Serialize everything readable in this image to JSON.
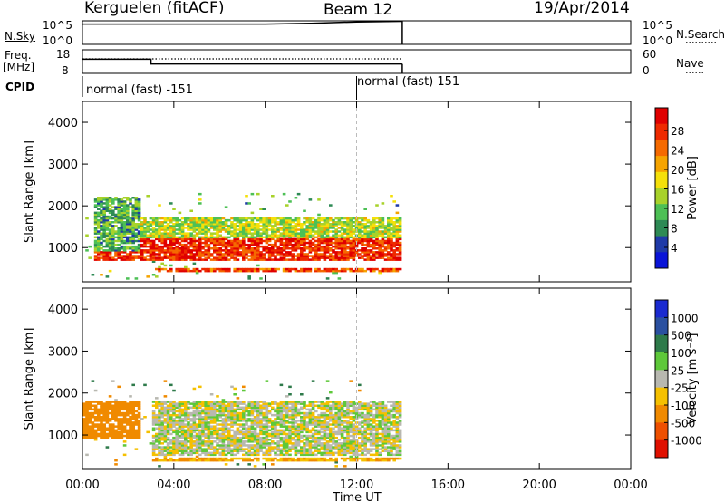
{
  "header": {
    "station": "Kerguelen (fitACF)",
    "beam": "Beam 12",
    "date": "19/Apr/2014"
  },
  "sky_panel": {
    "left_label": "N.Sky",
    "left_ticks": [
      "10^5",
      "10^0"
    ],
    "right_ticks": [
      "10^5",
      "10^0"
    ],
    "right_label": "N.Search"
  },
  "freq_panel": {
    "left_label_line1": "Freq.",
    "left_label_line2": "[MHz]",
    "left_ticks": [
      "18",
      "8"
    ],
    "right_ticks": [
      "60",
      "0"
    ],
    "right_label": "Nave"
  },
  "cpid": {
    "label": "CPID",
    "segments": [
      {
        "text": "normal (fast) -151",
        "start": "00:00",
        "end": "12:00"
      },
      {
        "text": "normal (fast) 151",
        "start": "12:00",
        "end": "14:00"
      }
    ]
  },
  "x_axis": {
    "ticks": [
      "00:00",
      "04:00",
      "08:00",
      "12:00",
      "16:00",
      "20:00",
      "00:00"
    ],
    "label": "Time UT"
  },
  "power_panel": {
    "y_label": "Slant Range [km]",
    "y_ticks": [
      "4000",
      "3000",
      "2000",
      "1000"
    ],
    "colorbar_label": "Power [dB]",
    "colorbar_ticks": [
      "28",
      "24",
      "20",
      "16",
      "12",
      "8",
      "4"
    ],
    "colors": [
      "#0a14d8",
      "#1f3aa8",
      "#2e8a55",
      "#4dc055",
      "#a8d22a",
      "#f5e00a",
      "#f5a400",
      "#f56a00",
      "#ee2a00",
      "#e00000"
    ]
  },
  "velocity_panel": {
    "y_label": "Slant Range [km]",
    "y_ticks": [
      "4000",
      "3000",
      "2000",
      "1000"
    ],
    "colorbar_label": "Velocity [m s⁻¹]",
    "colorbar_ticks": [
      "1000",
      "500",
      "100",
      "25",
      "-25",
      "-100",
      "-500",
      "-1000"
    ],
    "colors": [
      "#1a2ad0",
      "#2a50a0",
      "#2e7a4a",
      "#5ec83a",
      "#b8b8b0",
      "#f5c000",
      "#f08a00",
      "#ee5000",
      "#e01000"
    ]
  },
  "chart_data": [
    {
      "type": "line",
      "title": "N.Sky",
      "x": [
        "00:00",
        "04:00",
        "08:00",
        "10:00",
        "12:00",
        "14:00"
      ],
      "series": [
        {
          "name": "N.Sky",
          "values": [
            20000,
            20000,
            20000,
            30000,
            60000,
            80000
          ]
        }
      ],
      "ylim": [
        1,
        100000
      ],
      "y_scale": "log"
    },
    {
      "type": "line",
      "title": "Freq.",
      "ylabel": "[MHz]",
      "x": [
        "00:00",
        "03:00",
        "03:00",
        "14:00"
      ],
      "series": [
        {
          "name": "Freq.",
          "values": [
            14,
            14,
            12,
            12
          ]
        }
      ],
      "ylim": [
        8,
        18
      ]
    },
    {
      "type": "heatmap",
      "title": "Power [dB]",
      "xlabel": "Time UT",
      "ylabel": "Slant Range [km]",
      "xlim": [
        "00:00",
        "24:00"
      ],
      "ylim": [
        180,
        4500
      ],
      "value_range": [
        0,
        30
      ],
      "data_extent": [
        "00:00",
        "14:00"
      ],
      "bands": [
        {
          "time": [
            "00:30",
            "14:00"
          ],
          "range_km": [
            650,
            1200
          ],
          "power_db": 26
        },
        {
          "time": [
            "00:30",
            "14:00"
          ],
          "range_km": [
            1200,
            1700
          ],
          "power_db": 14
        },
        {
          "time": [
            "03:00",
            "14:00"
          ],
          "range_km": [
            380,
            480
          ],
          "power_db": 24
        },
        {
          "time": [
            "00:30",
            "02:30"
          ],
          "range_km": [
            900,
            2200
          ],
          "power_db": 10
        }
      ]
    },
    {
      "type": "heatmap",
      "title": "Velocity [m s⁻¹]",
      "xlabel": "Time UT",
      "ylabel": "Slant Range [km]",
      "xlim": [
        "00:00",
        "24:00"
      ],
      "ylim": [
        180,
        4500
      ],
      "value_range": [
        -1000,
        1000
      ],
      "data_extent": [
        "00:00",
        "14:00"
      ],
      "bands": [
        {
          "time": [
            "00:00",
            "02:30"
          ],
          "range_km": [
            900,
            1800
          ],
          "velocity": -200
        },
        {
          "time": [
            "03:00",
            "14:00"
          ],
          "range_km": [
            500,
            1800
          ],
          "velocity": 0
        },
        {
          "time": [
            "03:00",
            "14:00"
          ],
          "range_km": [
            350,
            450
          ],
          "velocity": -100
        }
      ]
    }
  ]
}
